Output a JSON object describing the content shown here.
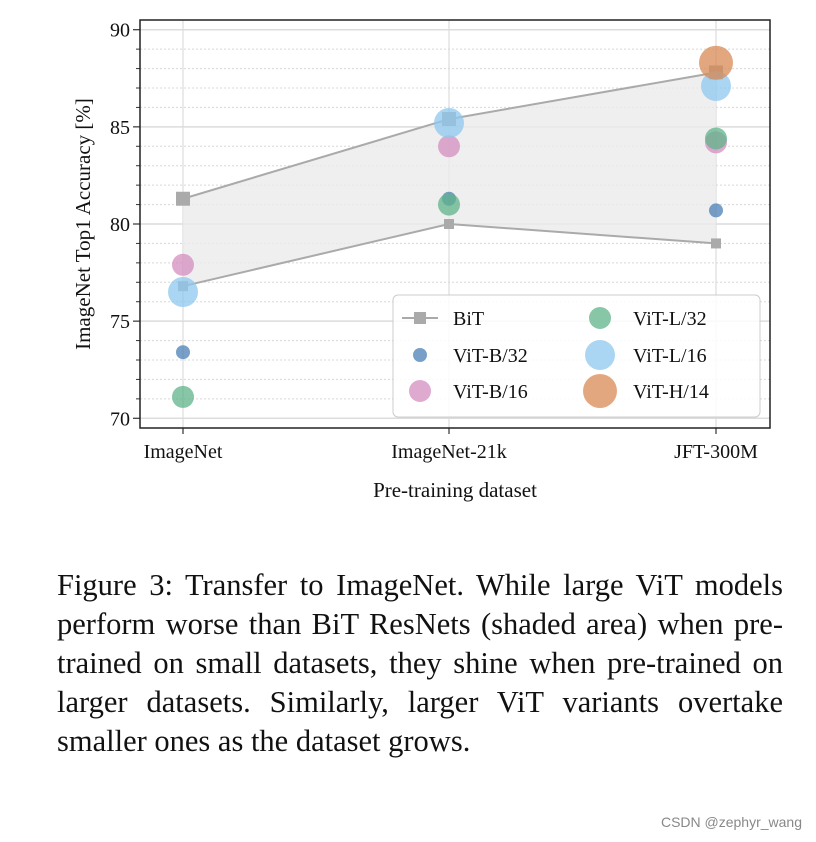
{
  "chart_data": {
    "type": "scatter",
    "xlabel": "Pre-training dataset",
    "ylabel": "ImageNet Top1 Accuracy [%]",
    "categories": [
      "ImageNet",
      "ImageNet-21k",
      "JFT-300M"
    ],
    "ylim": [
      69.5,
      90.5
    ],
    "yticks": [
      70,
      75,
      80,
      85,
      90
    ],
    "grid": true,
    "legend_position": "bottom-right",
    "bit_band": {
      "name": "BiT",
      "upper": [
        81.3,
        85.4,
        87.8
      ],
      "lower": [
        76.8,
        80.0,
        79.0
      ],
      "color": "#aaaaaa",
      "fill": "#ebebeb"
    },
    "series": [
      {
        "name": "ViT-B/32",
        "values": [
          73.4,
          81.3,
          80.7
        ],
        "color": "#4a7fb5",
        "size": 7
      },
      {
        "name": "ViT-B/16",
        "values": [
          77.9,
          84.0,
          84.2
        ],
        "color": "#d48ec0",
        "size": 11
      },
      {
        "name": "ViT-L/32",
        "values": [
          71.1,
          81.0,
          84.4
        ],
        "color": "#5fb38a",
        "size": 11
      },
      {
        "name": "ViT-L/16",
        "values": [
          76.5,
          85.2,
          87.1
        ],
        "color": "#8ec8f0",
        "size": 15
      },
      {
        "name": "ViT-H/14",
        "values": [
          null,
          null,
          88.3
        ],
        "color": "#d98a55",
        "size": 17
      }
    ]
  },
  "caption": "Figure 3:  Transfer to ImageNet.  While large ViT models perform worse than BiT ResNets (shaded area) when pre-trained on small datasets, they shine when pre-trained on larger datasets.  Similarly, larger ViT variants overtake smaller ones as the dataset grows.",
  "watermark": "CSDN @zephyr_wang"
}
